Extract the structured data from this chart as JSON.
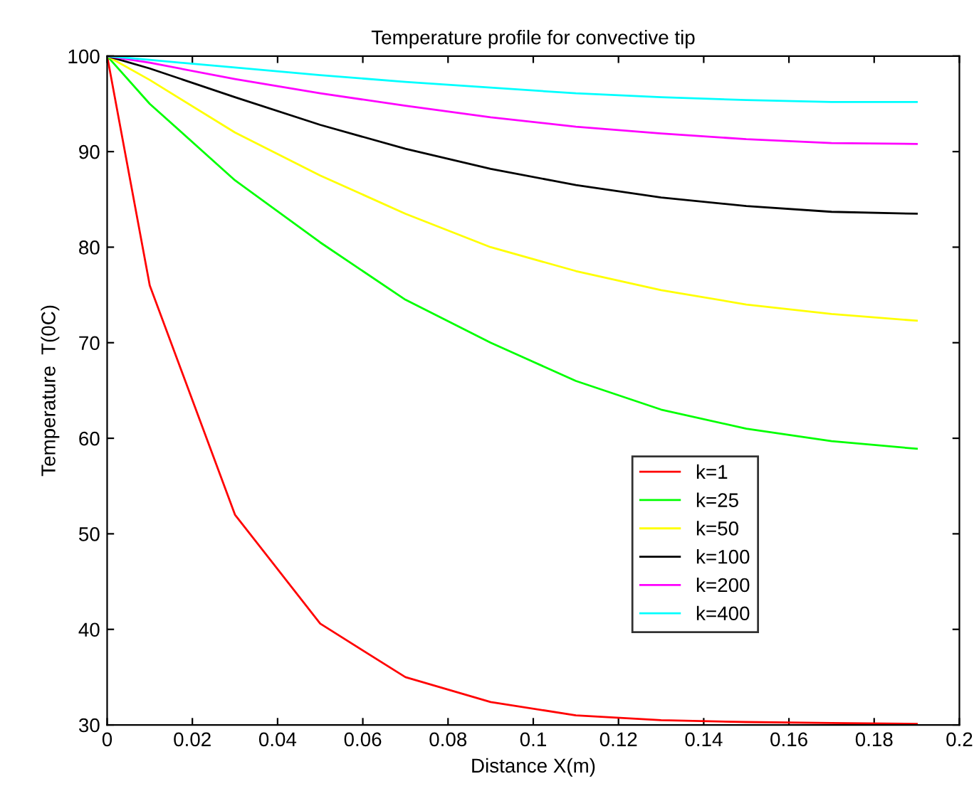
{
  "chart_data": {
    "type": "line",
    "title": "Temperature profile for convective tip",
    "xlabel": "Distance X(m)",
    "ylabel": "Temperature  T(0C)",
    "x": [
      0,
      0.01,
      0.03,
      0.05,
      0.07,
      0.09,
      0.11,
      0.13,
      0.15,
      0.17,
      0.19
    ],
    "series": [
      {
        "name": "k=1",
        "color": "#ff0000",
        "values": [
          100,
          76,
          52,
          40.6,
          35,
          32.4,
          31,
          30.5,
          30.3,
          30.2,
          30.1
        ]
      },
      {
        "name": "k=25",
        "color": "#00ff00",
        "values": [
          100,
          95,
          87,
          80.5,
          74.5,
          70,
          66,
          63,
          61,
          59.7,
          58.9
        ]
      },
      {
        "name": "k=50",
        "color": "#ffff00",
        "values": [
          100,
          97.5,
          92,
          87.5,
          83.5,
          80,
          77.5,
          75.5,
          74,
          73,
          72.3
        ]
      },
      {
        "name": "k=100",
        "color": "#000000",
        "values": [
          100,
          98.7,
          95.7,
          92.8,
          90.3,
          88.2,
          86.5,
          85.2,
          84.3,
          83.7,
          83.5
        ]
      },
      {
        "name": "k=200",
        "color": "#ff00ff",
        "values": [
          100,
          99.3,
          97.6,
          96.1,
          94.8,
          93.6,
          92.6,
          91.9,
          91.3,
          90.9,
          90.8
        ]
      },
      {
        "name": "k=400",
        "color": "#00ffff",
        "values": [
          100,
          99.6,
          98.8,
          98,
          97.3,
          96.7,
          96.1,
          95.7,
          95.4,
          95.2,
          95.2
        ]
      }
    ],
    "xlim": [
      0,
      0.2
    ],
    "xticks": [
      0,
      0.02,
      0.04,
      0.06,
      0.08,
      0.1,
      0.12,
      0.14,
      0.16,
      0.18,
      0.2
    ],
    "ylim": [
      30,
      100
    ],
    "yticks": [
      30,
      40,
      50,
      60,
      70,
      80,
      90,
      100
    ],
    "grid": false,
    "legend": "center",
    "marker": "none",
    "line_style": "solid"
  }
}
